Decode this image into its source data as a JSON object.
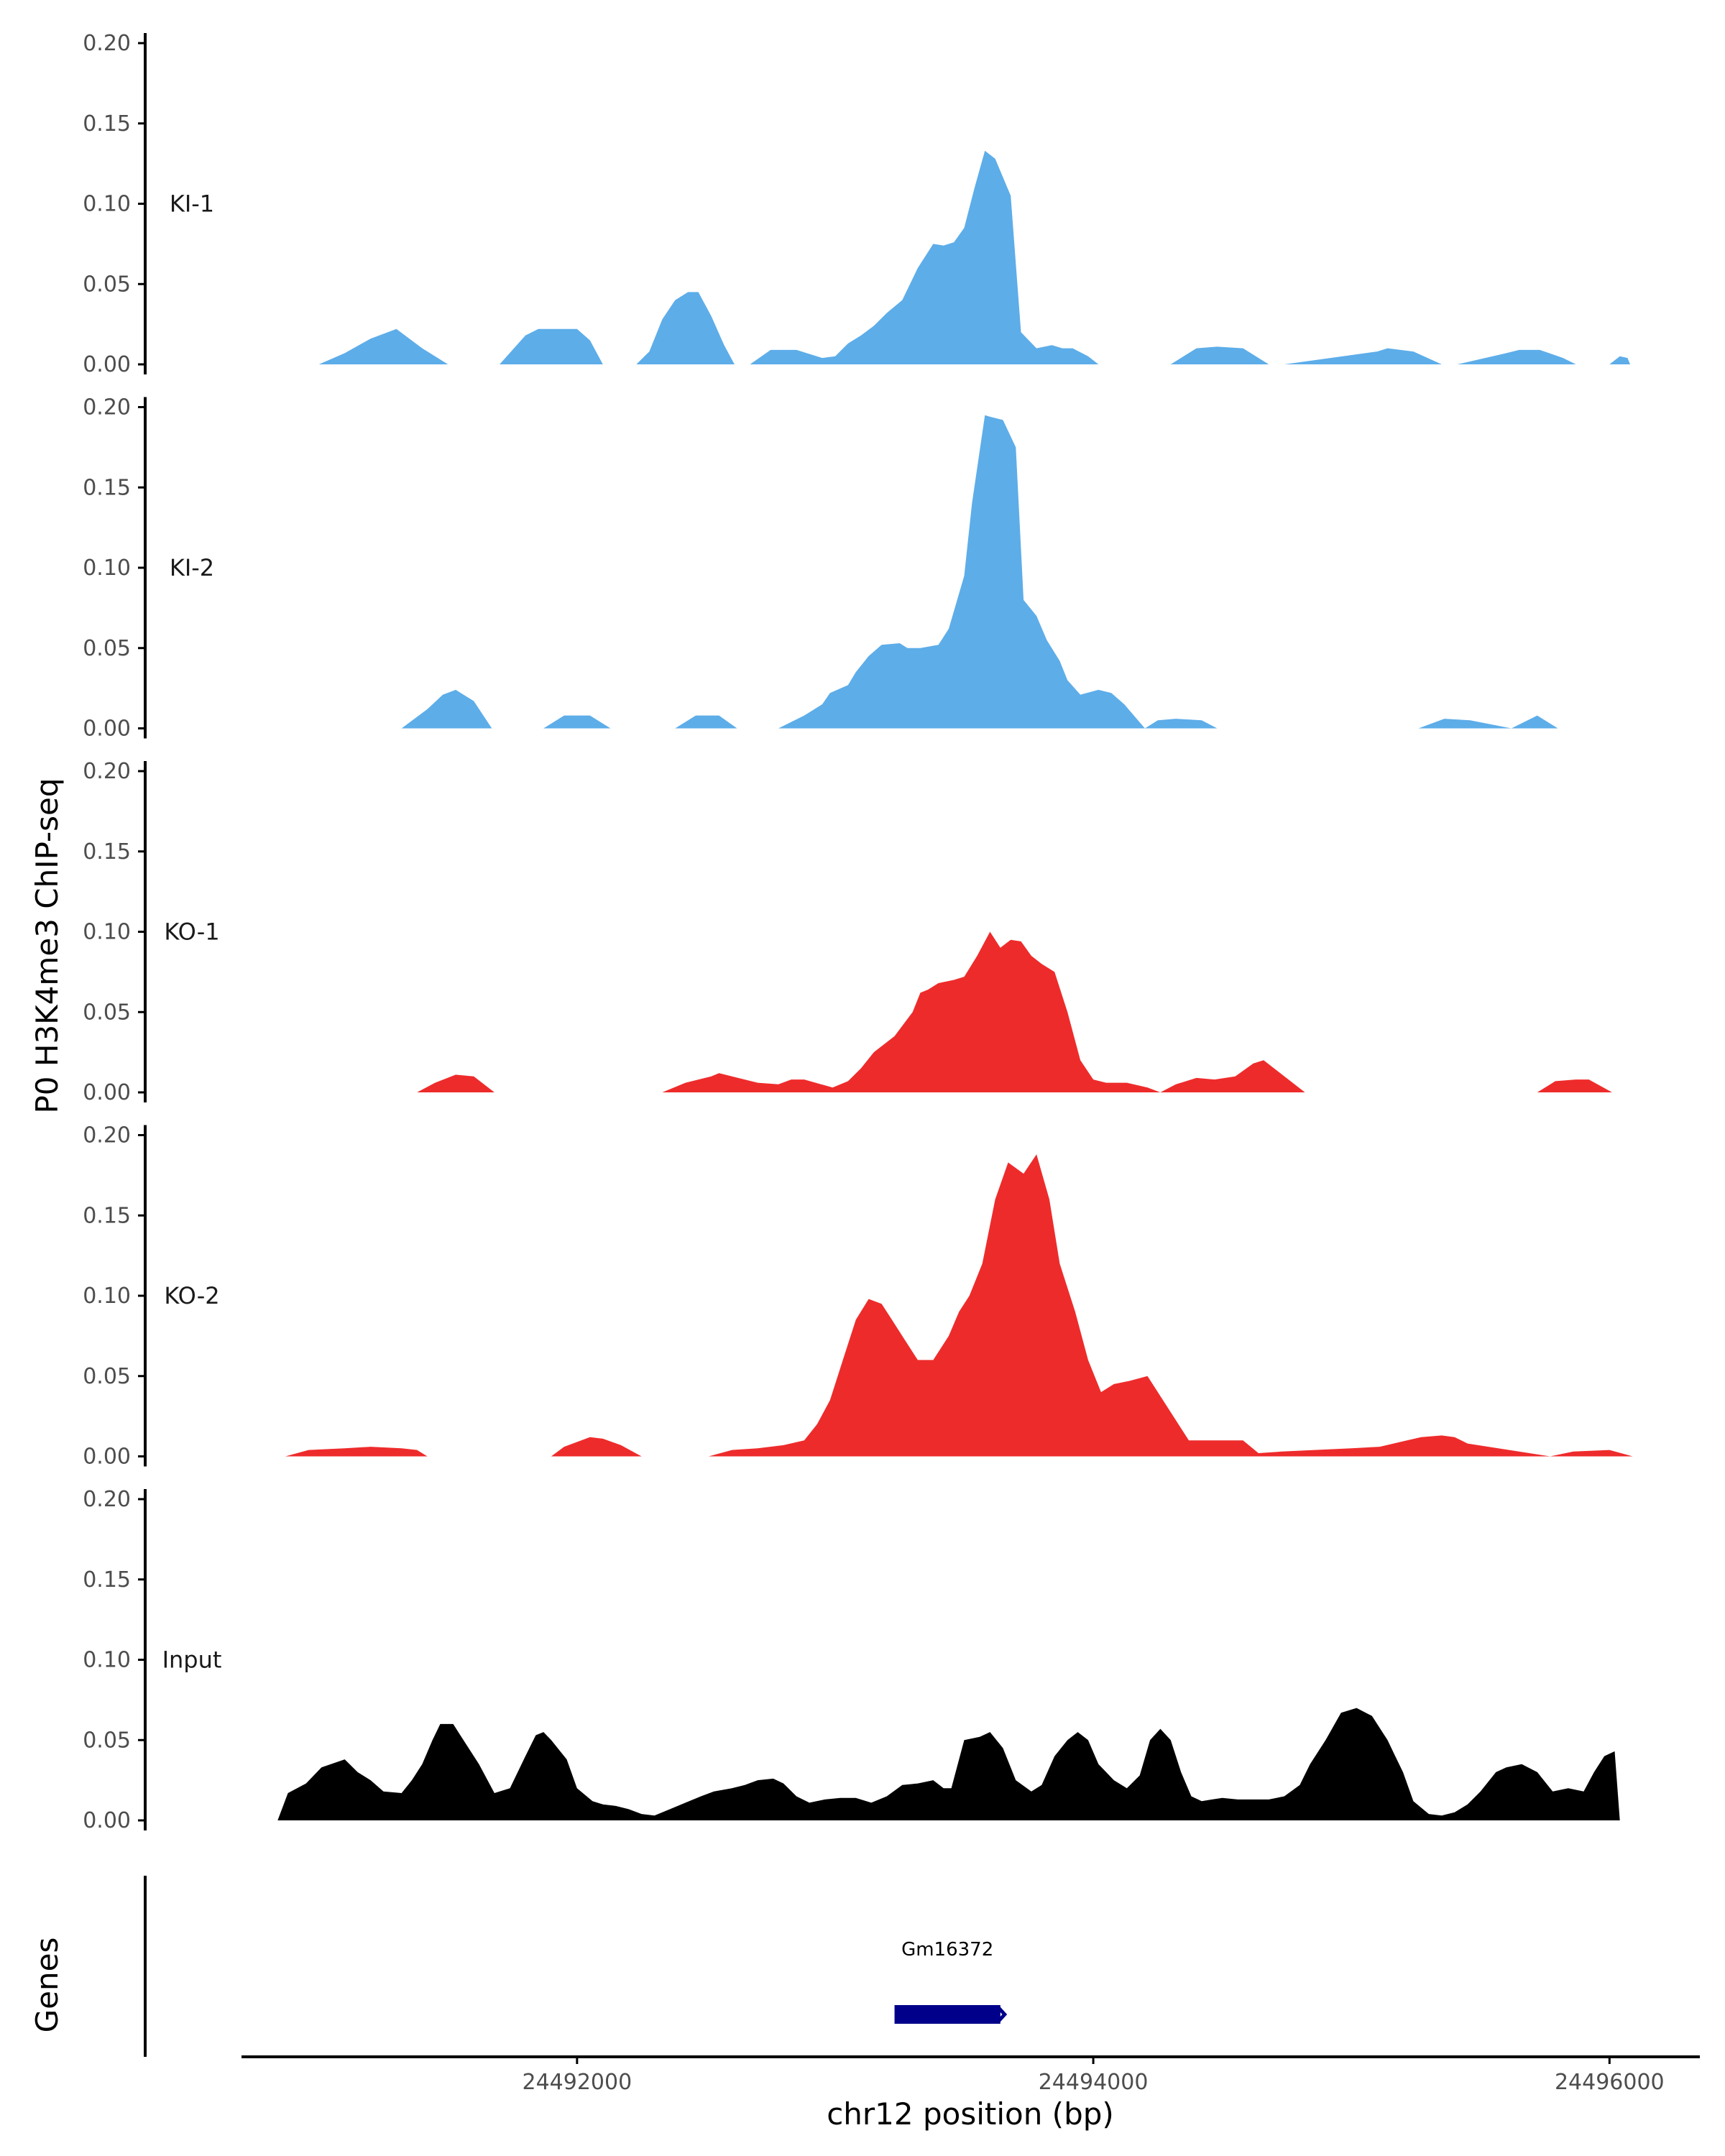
{
  "chart_data": {
    "type": "area",
    "ylabel": "P0 H3K4me3 ChIP-seq",
    "xlabel": "chr12 position (bp)",
    "xlim": [
      24490700,
      24496350
    ],
    "ylim": [
      0,
      0.2
    ],
    "y_ticks": [
      0,
      0.05,
      0.1,
      0.15,
      0.2
    ],
    "y_tick_labels": [
      "0.00",
      "0.05",
      "0.10",
      "0.15",
      "0.20"
    ],
    "x_ticks": [
      24492000,
      24494000,
      24496000
    ],
    "x_tick_labels": [
      "24492000",
      "24494000",
      "24496000"
    ],
    "grid": false,
    "series": [
      {
        "name": "KI-1",
        "color": "#5dade9",
        "x": [
          24491000,
          24491100,
          24491200,
          24491300,
          24491400,
          24491500,
          24491700,
          24491800,
          24491850,
          24491900,
          24492000,
          24492050,
          24492100,
          24492230,
          24492280,
          24492330,
          24492380,
          24492430,
          24492470,
          24492520,
          24492570,
          24492610,
          24492670,
          24492750,
          24492850,
          24492950,
          24493000,
          24493050,
          24493100,
          24493150,
          24493200,
          24493260,
          24493320,
          24493380,
          24493420,
          24493460,
          24493500,
          24493540,
          24493580,
          24493620,
          24493680,
          24493720,
          24493780,
          24493840,
          24493880,
          24493920,
          24493980,
          24494020,
          24494300,
          24494400,
          24494480,
          24494580,
          24494680,
          24494740,
          24495100,
          24495140,
          24495240,
          24495350,
          24495410,
          24495600,
          24495650,
          24495730,
          24495820,
          24495870,
          24496000,
          24496040,
          24496070,
          24496080
        ],
        "values": [
          0,
          0.007,
          0.016,
          0.022,
          0.01,
          0,
          0,
          0.018,
          0.022,
          0.022,
          0.022,
          0.015,
          0,
          0,
          0.008,
          0.028,
          0.04,
          0.045,
          0.045,
          0.03,
          0.012,
          0,
          0,
          0.009,
          0.009,
          0.004,
          0.005,
          0.013,
          0.018,
          0.024,
          0.032,
          0.04,
          0.06,
          0.075,
          0.074,
          0.076,
          0.085,
          0.11,
          0.133,
          0.128,
          0.105,
          0.02,
          0.01,
          0.012,
          0.01,
          0.01,
          0.005,
          0,
          0,
          0.01,
          0.011,
          0.01,
          0,
          0,
          0.008,
          0.01,
          0.008,
          0,
          0,
          0.007,
          0.009,
          0.009,
          0.004,
          0,
          0,
          0.005,
          0.004,
          0
        ]
      },
      {
        "name": "KI-2",
        "color": "#5dade9",
        "x": [
          24491320,
          24491420,
          24491480,
          24491530,
          24491600,
          24491670,
          24491870,
          24491950,
          24492050,
          24492130,
          24492380,
          24492460,
          24492550,
          24492620,
          24492780,
          24492880,
          24492950,
          24492980,
          24493050,
          24493080,
          24493130,
          24493180,
          24493250,
          24493280,
          24493330,
          24493400,
          24493440,
          24493500,
          24493530,
          24493580,
          24493600,
          24493650,
          24493700,
          24493730,
          24493780,
          24493820,
          24493870,
          24493900,
          24493950,
          24494020,
          24494070,
          24494120,
          24494200,
          24494250,
          24494320,
          24494420,
          24494480,
          24495260,
          24495360,
          24495460,
          24495620,
          24495720,
          24495800
        ],
        "values": [
          0,
          0.012,
          0.021,
          0.024,
          0.017,
          0,
          0,
          0.008,
          0.008,
          0,
          0,
          0.008,
          0.008,
          0,
          0,
          0.008,
          0.015,
          0.022,
          0.027,
          0.035,
          0.045,
          0.052,
          0.053,
          0.05,
          0.05,
          0.052,
          0.062,
          0.095,
          0.14,
          0.195,
          0.194,
          0.192,
          0.175,
          0.08,
          0.07,
          0.055,
          0.042,
          0.03,
          0.021,
          0.024,
          0.022,
          0.015,
          0,
          0.005,
          0.006,
          0.005,
          0,
          0,
          0.006,
          0.005,
          0,
          0.008,
          0
        ]
      },
      {
        "name": "KO-1",
        "color": "#ee2b2b",
        "x": [
          24491380,
          24491450,
          24491530,
          24491600,
          24491680,
          24492330,
          24492420,
          24492520,
          24492550,
          24492600,
          24492700,
          24492780,
          24492830,
          24492880,
          24492990,
          24493050,
          24493100,
          24493150,
          24493230,
          24493300,
          24493330,
          24493360,
          24493400,
          24493460,
          24493500,
          24493550,
          24493600,
          24493640,
          24493680,
          24493720,
          24493760,
          24493800,
          24493850,
          24493900,
          24493950,
          24494000,
          24494050,
          24494130,
          24494210,
          24494260,
          24494320,
          24494400,
          24494470,
          24494550,
          24494620,
          24494660,
          24494700,
          24494820,
          24495720,
          24495790,
          24495870,
          24495920,
          24496010
        ],
        "values": [
          0,
          0.006,
          0.011,
          0.01,
          0,
          0,
          0.006,
          0.01,
          0.012,
          0.01,
          0.006,
          0.005,
          0.008,
          0.008,
          0.003,
          0.007,
          0.015,
          0.025,
          0.035,
          0.05,
          0.062,
          0.064,
          0.068,
          0.07,
          0.072,
          0.085,
          0.1,
          0.09,
          0.095,
          0.094,
          0.085,
          0.08,
          0.075,
          0.05,
          0.02,
          0.008,
          0.006,
          0.006,
          0.003,
          0,
          0.005,
          0.009,
          0.008,
          0.01,
          0.018,
          0.02,
          0.015,
          0,
          0,
          0.007,
          0.008,
          0.008,
          0
        ]
      },
      {
        "name": "KO-2",
        "color": "#ee2b2b",
        "x": [
          24490870,
          24490960,
          24491100,
          24491200,
          24491320,
          24491380,
          24491420,
          24491900,
          24491950,
          24492050,
          24492100,
          24492170,
          24492250,
          24492510,
          24492600,
          24492700,
          24492800,
          24492880,
          24492930,
          24492980,
          24493030,
          24493080,
          24493130,
          24493180,
          24493220,
          24493260,
          24493320,
          24493380,
          24493440,
          24493480,
          24493520,
          24493570,
          24493620,
          24493670,
          24493730,
          24493780,
          24493830,
          24493870,
          24493930,
          24493980,
          24494030,
          24494080,
          24494140,
          24494210,
          24494370,
          24494440,
          24494520,
          24494580,
          24494640,
          24494730,
          24495000,
          24495110,
          24495190,
          24495270,
          24495350,
          24495400,
          24495450,
          24495770,
          24495860,
          24496000,
          24496090
        ],
        "values": [
          0,
          0.004,
          0.005,
          0.006,
          0.005,
          0.004,
          0,
          0,
          0.006,
          0.012,
          0.011,
          0.007,
          0,
          0,
          0.004,
          0.005,
          0.007,
          0.01,
          0.02,
          0.035,
          0.06,
          0.085,
          0.098,
          0.095,
          0.085,
          0.075,
          0.06,
          0.06,
          0.075,
          0.09,
          0.1,
          0.12,
          0.16,
          0.183,
          0.176,
          0.188,
          0.16,
          0.12,
          0.09,
          0.06,
          0.04,
          0.045,
          0.047,
          0.05,
          0.01,
          0.01,
          0.01,
          0.01,
          0.002,
          0.003,
          0.005,
          0.006,
          0.009,
          0.012,
          0.013,
          0.012,
          0.008,
          0,
          0.003,
          0.004,
          0
        ]
      },
      {
        "name": "Input",
        "color": "#000000",
        "x": [
          24490840,
          24490880,
          24490950,
          24491010,
          24491100,
          24491150,
          24491200,
          24491250,
          24491320,
          24491360,
          24491400,
          24491440,
          24491470,
          24491520,
          24491560,
          24491620,
          24491680,
          24491740,
          24491800,
          24491840,
          24491870,
          24491900,
          24491960,
          24492000,
          24492060,
          24492100,
          24492150,
          24492200,
          24492250,
          24492300,
          24492360,
          24492420,
          24492480,
          24492530,
          24492600,
          24492650,
          24492700,
          24492760,
          24492800,
          24492850,
          24492900,
          24492960,
          24493020,
          24493080,
          24493140,
          24493200,
          24493260,
          24493320,
          24493380,
          24493420,
          24493450,
          24493500,
          24493560,
          24493600,
          24493650,
          24493700,
          24493760,
          24493800,
          24493850,
          24493900,
          24493940,
          24493980,
          24494020,
          24494080,
          24494130,
          24494180,
          24494220,
          24494260,
          24494300,
          24494340,
          24494380,
          24494420,
          24494460,
          24494500,
          24494560,
          24494620,
          24494680,
          24494740,
          24494800,
          24494840,
          24494900,
          24494960,
          24495020,
          24495080,
          24495140,
          24495170,
          24495200,
          24495240,
          24495300,
          24495350,
          24495400,
          24495450,
          24495500,
          24495560,
          24495600,
          24495660,
          24495720,
          24495780,
          24495840,
          24495900,
          24495940,
          24495980,
          24496020,
          24496040
        ],
        "values": [
          0,
          0.017,
          0.023,
          0.033,
          0.038,
          0.03,
          0.025,
          0.018,
          0.017,
          0.025,
          0.035,
          0.05,
          0.06,
          0.06,
          0.05,
          0.035,
          0.017,
          0.02,
          0.04,
          0.053,
          0.055,
          0.05,
          0.038,
          0.02,
          0.012,
          0.01,
          0.009,
          0.007,
          0.004,
          0.003,
          0.007,
          0.011,
          0.015,
          0.018,
          0.02,
          0.022,
          0.025,
          0.026,
          0.023,
          0.015,
          0.011,
          0.013,
          0.014,
          0.014,
          0.011,
          0.015,
          0.022,
          0.023,
          0.025,
          0.02,
          0.02,
          0.05,
          0.052,
          0.055,
          0.045,
          0.025,
          0.018,
          0.022,
          0.04,
          0.05,
          0.055,
          0.05,
          0.035,
          0.025,
          0.02,
          0.028,
          0.05,
          0.057,
          0.05,
          0.03,
          0.015,
          0.012,
          0.013,
          0.014,
          0.013,
          0.013,
          0.013,
          0.015,
          0.022,
          0.035,
          0.05,
          0.067,
          0.07,
          0.065,
          0.05,
          0.04,
          0.03,
          0.012,
          0.004,
          0.003,
          0.005,
          0.01,
          0.018,
          0.03,
          0.033,
          0.035,
          0.03,
          0.018,
          0.02,
          0.018,
          0.03,
          0.04,
          0.043,
          0
        ]
      }
    ],
    "genes": [
      {
        "name": "Gm16372",
        "start": 24493230,
        "end": 24493640,
        "color": "#00008b"
      }
    ],
    "gene_track_label": "Genes"
  }
}
